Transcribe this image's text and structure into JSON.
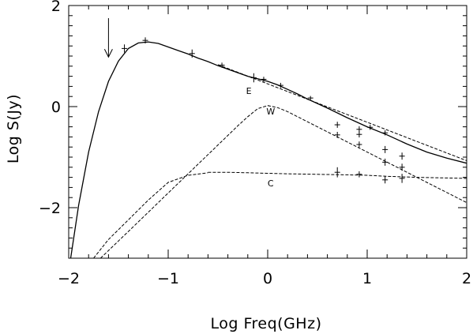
{
  "chart_data": {
    "type": "line",
    "title": "",
    "xlabel": "Log Freq(GHz)",
    "ylabel": "Log S(Jy)",
    "xlim": [
      -2,
      2
    ],
    "ylim": [
      -3,
      2
    ],
    "xticks": [
      {
        "value": -2,
        "label": "−2"
      },
      {
        "value": -1,
        "label": "−1"
      },
      {
        "value": 0,
        "label": "0"
      },
      {
        "value": 1,
        "label": "1"
      },
      {
        "value": 2,
        "label": "2"
      }
    ],
    "yticks": [
      {
        "value": -2,
        "label": "−2"
      },
      {
        "value": 0,
        "label": "0"
      },
      {
        "value": 2,
        "label": "2"
      }
    ],
    "grid": false,
    "series": [
      {
        "id": "total",
        "style": "solid",
        "x": [
          -1.98,
          -1.9,
          -1.8,
          -1.7,
          -1.6,
          -1.5,
          -1.4,
          -1.3,
          -1.2,
          -1.1,
          -1.0,
          -0.9,
          -0.8,
          -0.7,
          -0.6,
          -0.5,
          -0.4,
          -0.3,
          -0.2,
          -0.1,
          0.0,
          0.1,
          0.2,
          0.3,
          0.4,
          0.6,
          0.8,
          1.0,
          1.2,
          1.4,
          1.6,
          1.8,
          2.0
        ],
        "y": [
          -3.0,
          -1.95,
          -0.9,
          -0.1,
          0.5,
          0.9,
          1.15,
          1.26,
          1.28,
          1.25,
          1.18,
          1.11,
          1.04,
          0.96,
          0.89,
          0.81,
          0.74,
          0.67,
          0.6,
          0.55,
          0.5,
          0.43,
          0.34,
          0.25,
          0.15,
          -0.03,
          -0.22,
          -0.4,
          -0.56,
          -0.74,
          -0.9,
          -1.02,
          -1.12
        ]
      },
      {
        "id": "E",
        "style": "dashed",
        "x": [
          -0.5,
          -0.25,
          0.0,
          0.25,
          0.5,
          0.75,
          1.0,
          1.25,
          1.5,
          1.75,
          2.0
        ],
        "y": [
          0.83,
          0.64,
          0.45,
          0.26,
          0.07,
          -0.12,
          -0.31,
          -0.5,
          -0.69,
          -0.88,
          -1.07
        ]
      },
      {
        "id": "W",
        "style": "dashed",
        "x": [
          -1.68,
          -1.4,
          -1.2,
          -1.0,
          -0.8,
          -0.6,
          -0.4,
          -0.3,
          -0.2,
          -0.1,
          0.0,
          0.1,
          0.2,
          0.4,
          0.6,
          0.8,
          1.0,
          1.2,
          1.4,
          1.6,
          1.8,
          2.0
        ],
        "y": [
          -3.0,
          -2.47,
          -2.09,
          -1.71,
          -1.33,
          -0.95,
          -0.57,
          -0.38,
          -0.2,
          -0.04,
          0.02,
          -0.02,
          -0.1,
          -0.3,
          -0.5,
          -0.7,
          -0.9,
          -1.1,
          -1.3,
          -1.5,
          -1.7,
          -1.9
        ]
      },
      {
        "id": "W-low",
        "style": "dashed",
        "x": [
          -1.75,
          -1.6,
          -1.4,
          -1.2,
          -1.0,
          -0.8,
          -0.6
        ],
        "y": [
          -3.0,
          -2.63,
          -2.24,
          -1.85,
          -1.5,
          -1.36,
          -1.31
        ]
      },
      {
        "id": "C",
        "style": "dashed",
        "x": [
          -0.6,
          -0.4,
          -0.2,
          0.0,
          0.2,
          0.5,
          0.8,
          1.0,
          1.2,
          1.5,
          2.0
        ],
        "y": [
          -1.3,
          -1.3,
          -1.31,
          -1.32,
          -1.33,
          -1.34,
          -1.35,
          -1.36,
          -1.38,
          -1.4,
          -1.42
        ]
      }
    ],
    "labels": [
      {
        "text": "E",
        "x": -0.19,
        "y": 0.25
      },
      {
        "text": "W",
        "x": 0.03,
        "y": -0.16
      },
      {
        "text": "C",
        "x": 0.03,
        "y": -1.58
      }
    ],
    "measurements": [
      {
        "x": -1.44,
        "y": 1.15,
        "ey": 0.08
      },
      {
        "x": -1.23,
        "y": 1.31,
        "ey": 0.06
      },
      {
        "x": -0.76,
        "y": 1.05,
        "ey": 0.08
      },
      {
        "x": -0.46,
        "y": 0.82,
        "ey": 0.05
      },
      {
        "x": -0.14,
        "y": 0.57,
        "ey": 0.09
      },
      {
        "x": -0.04,
        "y": 0.54,
        "ey": 0.05
      },
      {
        "x": 0.13,
        "y": 0.42,
        "ey": 0.05
      },
      {
        "x": 0.43,
        "y": 0.17,
        "ey": 0.04
      },
      {
        "x": 0.7,
        "y": -0.36,
        "ey": 0.06
      },
      {
        "x": 0.7,
        "y": -0.56,
        "ey": 0.06
      },
      {
        "x": 0.7,
        "y": -1.3,
        "ey": 0.1
      },
      {
        "x": 0.92,
        "y": -0.45,
        "ey": 0.06
      },
      {
        "x": 0.92,
        "y": -0.55,
        "ey": 0.06
      },
      {
        "x": 0.92,
        "y": -0.75,
        "ey": 0.06
      },
      {
        "x": 0.92,
        "y": -1.34,
        "ey": 0.06
      },
      {
        "x": 1.03,
        "y": -0.41,
        "ey": 0.05
      },
      {
        "x": 1.18,
        "y": -0.52,
        "ey": 0.05
      },
      {
        "x": 1.18,
        "y": -0.85,
        "ey": 0.07
      },
      {
        "x": 1.18,
        "y": -1.1,
        "ey": 0.07
      },
      {
        "x": 1.18,
        "y": -1.45,
        "ey": 0.07
      },
      {
        "x": 1.35,
        "y": -0.98,
        "ey": 0.07
      },
      {
        "x": 1.35,
        "y": -1.2,
        "ey": 0.07
      },
      {
        "x": 1.35,
        "y": -1.42,
        "ey": 0.09
      }
    ],
    "arrow": {
      "x": -1.6,
      "y_from": 1.75,
      "y_to": 0.98
    }
  }
}
